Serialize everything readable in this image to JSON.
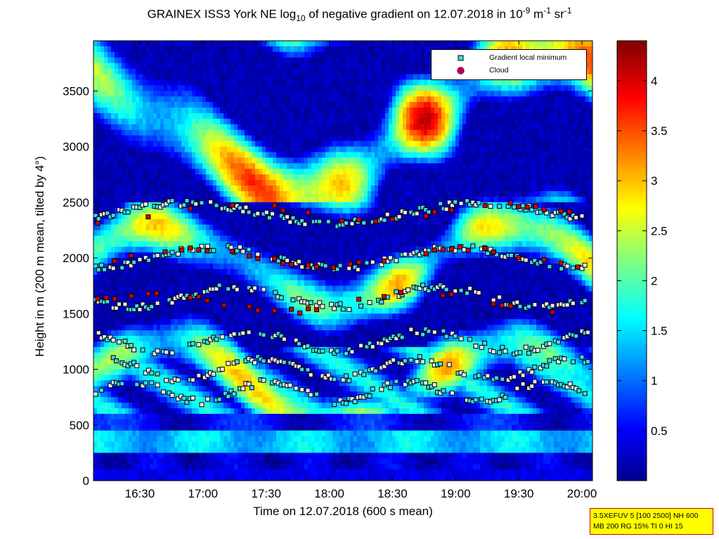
{
  "title": {
    "pre": "GRAINEX ISS3 York NE log",
    "sub": "10",
    "mid": " of negative gradient on 12.07.2018 in 10",
    "sup1": "-9",
    "mid2": " m",
    "sup2": "-1",
    "mid3": " sr",
    "sup3": "-1"
  },
  "parameter_box": {
    "line1": "3.5XEFUV 5 [100 2500] NH 600",
    "line2": "MB 200 RG 15% TI 0 HI 15"
  },
  "legend": {
    "items": [
      {
        "label": "Gradient local minimum",
        "marker": "square",
        "color": "#3fd8e8"
      },
      {
        "label": "Cloud",
        "marker": "circle",
        "color": "#d40000"
      }
    ]
  },
  "colors": {
    "frame": "#000000",
    "background": "#00008f"
  },
  "chart_data": {
    "type": "heatmap",
    "xlabel": "Time on 12.07.2018 (600 s mean)",
    "ylabel": "Height in m (200 m mean, tilted by 4°)",
    "xlim": [
      "16:08",
      "20:05"
    ],
    "ylim": [
      0,
      3950
    ],
    "x_ticks": [
      "16:30",
      "17:00",
      "17:30",
      "18:00",
      "18:30",
      "19:00",
      "19:30",
      "20:00"
    ],
    "y_ticks": [
      0,
      500,
      1000,
      1500,
      2000,
      2500,
      3000,
      3500
    ],
    "colorbar": {
      "range": [
        0,
        4.4
      ],
      "ticks": [
        0.5,
        1,
        1.5,
        2,
        2.5,
        3,
        3.5,
        4
      ],
      "colormap": "jet"
    },
    "layers": [
      {
        "name": "Gradient local minimum",
        "approx_heights_m": [
          2400,
          2000,
          1650,
          1250,
          1000,
          800
        ]
      },
      {
        "name": "Cloud",
        "approx_heights_m": [
          2400,
          2000,
          1600
        ]
      }
    ],
    "grid": false,
    "legend_position": "top-right"
  }
}
